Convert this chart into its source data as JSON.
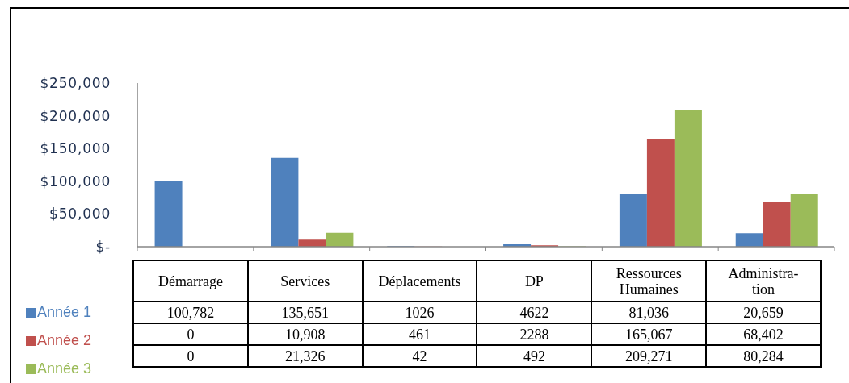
{
  "chart_data": {
    "type": "bar",
    "categories": [
      "Démarrage",
      "Services",
      "Déplacements",
      "DP",
      "Ressources Humaines",
      "Administra-tion"
    ],
    "series": [
      {
        "name": "Année 1",
        "color": "#4f81bd",
        "values": [
          100782,
          135651,
          1026,
          4622,
          81036,
          20659
        ],
        "value_labels": [
          "100,782",
          "135,651",
          "1026",
          "4622",
          "81,036",
          "20,659"
        ]
      },
      {
        "name": "Année 2",
        "color": "#c0504d",
        "values": [
          0,
          10908,
          461,
          2288,
          165067,
          68402
        ],
        "value_labels": [
          "0",
          "10,908",
          "461",
          "2288",
          "165,067",
          "68,402"
        ]
      },
      {
        "name": "Année 3",
        "color": "#9bbb59",
        "values": [
          0,
          21326,
          42,
          492,
          209271,
          80284
        ],
        "value_labels": [
          "0",
          "21,326",
          "42",
          "492",
          "209,271",
          "80,284"
        ]
      }
    ],
    "ylim": [
      0,
      250000
    ],
    "yticks": [
      {
        "value": 0,
        "label": "$-"
      },
      {
        "value": 50000,
        "label": "$50,000"
      },
      {
        "value": 100000,
        "label": "$100,000"
      },
      {
        "value": 150000,
        "label": "$150,000"
      },
      {
        "value": 200000,
        "label": "$200,000"
      },
      {
        "value": 250000,
        "label": "$250,000"
      }
    ],
    "legend": "bottom left",
    "tick_labels": "y"
  }
}
